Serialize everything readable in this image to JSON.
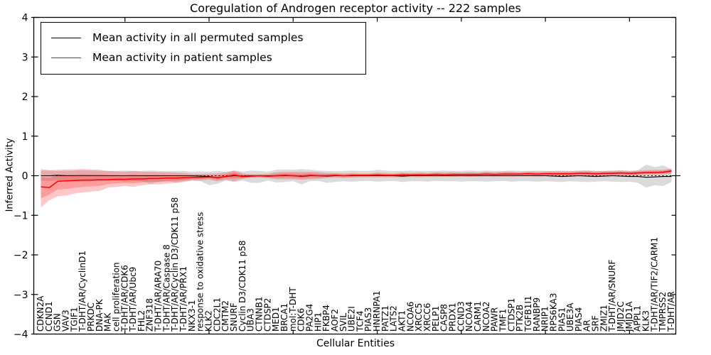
{
  "chart_data": {
    "type": "line",
    "title": "Coregulation of Androgen receptor activity -- 222 samples",
    "xlabel": "Cellular Entities",
    "ylabel": "Inferred Activity",
    "ylim": [
      -4,
      4
    ],
    "yticks": [
      4,
      3,
      2,
      1,
      0,
      -1,
      -2,
      -3,
      -4
    ],
    "xtick_positions": [
      10,
      20,
      30,
      40,
      50,
      60,
      70
    ],
    "grid": false,
    "legend_position": "upper left",
    "zero_line": "dashed",
    "categories": [
      "CDKN2A",
      "CCND1",
      "GSN",
      "VAV3",
      "TGIF1",
      "T-DHT/AR/CyclinD1",
      "PRKDC",
      "DNA-PK",
      "MAK",
      "cell proliferation",
      "T-DHT/AR/CDK6",
      "T-DHT/AR/Ubc9",
      "FHL2",
      "ZNF318",
      "T-DHT/AR/ARA70",
      "T-DHT/AR/Caspase 8",
      "T-DHT/AR/Cyclin D3/CDK11 p58",
      "T-DHT/AR/PRX1",
      "NKX3-1",
      "response to oxidative stress",
      "KLK2",
      "CDC2L1",
      "CMTM2",
      "SNURF",
      "Cyclin D3/CDK11 p58",
      "UBA3",
      "CTNNB1",
      "CTDSP2",
      "MED1",
      "BRCA1",
      "mol:T-DHT",
      "CDK6",
      "PA2G4",
      "HIP1",
      "FKBP4",
      "AOF2",
      "SVIL",
      "UBE2I",
      "TCF4",
      "PIAS3",
      "HNRNPA1",
      "PATZ1",
      "LATS2",
      "AKT1",
      "NCOA6",
      "XRCC5",
      "XRCC6",
      "PELP1",
      "CASP8",
      "PRDX1",
      "CCND3",
      "NCOA4",
      "CARM1",
      "NCOA2",
      "PAWR",
      "TMF1",
      "CTDSP1",
      "PTK2B",
      "TGFB1I1",
      "RANBP9",
      "NRIP1",
      "RPS6KA3",
      "PIAS1",
      "UBE3A",
      "PIAS4",
      "AR",
      "SRF",
      "ZMIZ1",
      "T-DHT/AR/SNURF",
      "JMJD2C",
      "JMJD1A",
      "APPL1",
      "KLK3",
      "T-DHT/AR/TIF2/CARM1",
      "TMPRSS2",
      "T-DHT/AR"
    ],
    "series": [
      {
        "name": "Mean activity in all permuted samples",
        "color": "#000000",
        "band_color": "rgba(0,0,0,0.14)",
        "values": [
          0.0,
          0.0,
          0.01,
          0.0,
          0.0,
          0.0,
          0.0,
          0.0,
          0.0,
          0.0,
          0.0,
          0.0,
          0.0,
          0.0,
          0.0,
          0.0,
          0.0,
          0.0,
          0.0,
          -0.01,
          -0.02,
          -0.05,
          -0.02,
          0.0,
          -0.01,
          0.0,
          0.0,
          0.0,
          0.0,
          0.0,
          0.0,
          -0.02,
          0.0,
          0.0,
          -0.01,
          0.0,
          0.0,
          0.0,
          0.0,
          0.0,
          0.0,
          0.0,
          0.0,
          -0.01,
          0.0,
          0.0,
          0.0,
          0.0,
          0.0,
          0.0,
          0.0,
          0.0,
          0.0,
          0.0,
          0.0,
          0.0,
          0.0,
          0.0,
          0.0,
          0.0,
          0.0,
          -0.01,
          -0.02,
          -0.01,
          0.0,
          -0.01,
          -0.02,
          -0.01,
          0.0,
          -0.01,
          -0.02,
          -0.02,
          -0.04,
          -0.03,
          -0.02,
          -0.02
        ],
        "band_hi": [
          0.13,
          0.13,
          0.12,
          0.12,
          0.13,
          0.14,
          0.13,
          0.12,
          0.12,
          0.12,
          0.13,
          0.12,
          0.12,
          0.13,
          0.12,
          0.11,
          0.12,
          0.12,
          0.1,
          0.11,
          0.1,
          0.12,
          0.1,
          0.12,
          0.1,
          0.13,
          0.12,
          0.1,
          0.15,
          0.16,
          0.15,
          0.17,
          0.15,
          0.13,
          0.12,
          0.11,
          0.12,
          0.13,
          0.12,
          0.12,
          0.15,
          0.13,
          0.12,
          0.12,
          0.13,
          0.12,
          0.12,
          0.12,
          0.13,
          0.12,
          0.12,
          0.13,
          0.12,
          0.13,
          0.12,
          0.12,
          0.13,
          0.12,
          0.12,
          0.13,
          0.12,
          0.12,
          0.13,
          0.12,
          0.13,
          0.14,
          0.12,
          0.12,
          0.13,
          0.14,
          0.12,
          0.14,
          0.28,
          0.22,
          0.26,
          0.16
        ],
        "band_lo": [
          -0.13,
          -0.13,
          -0.12,
          -0.13,
          -0.14,
          -0.15,
          -0.14,
          -0.13,
          -0.14,
          -0.13,
          -0.15,
          -0.14,
          -0.14,
          -0.2,
          -0.16,
          -0.14,
          -0.17,
          -0.14,
          -0.12,
          -0.14,
          -0.24,
          -0.2,
          -0.12,
          -0.16,
          -0.12,
          -0.18,
          -0.18,
          -0.12,
          -0.17,
          -0.16,
          -0.14,
          -0.22,
          -0.14,
          -0.13,
          -0.18,
          -0.16,
          -0.14,
          -0.15,
          -0.14,
          -0.13,
          -0.15,
          -0.14,
          -0.13,
          -0.16,
          -0.14,
          -0.14,
          -0.15,
          -0.13,
          -0.14,
          -0.14,
          -0.15,
          -0.14,
          -0.14,
          -0.15,
          -0.14,
          -0.13,
          -0.15,
          -0.14,
          -0.14,
          -0.15,
          -0.14,
          -0.15,
          -0.16,
          -0.14,
          -0.15,
          -0.16,
          -0.15,
          -0.14,
          -0.15,
          -0.16,
          -0.15,
          -0.18,
          -0.3,
          -0.24,
          -0.26,
          -0.16
        ]
      },
      {
        "name": "Mean activity in patient samples",
        "color": "#ff0000",
        "band_color": "rgba(255,0,0,0.22)",
        "inner_band_scale": 0.55,
        "values": [
          -0.28,
          -0.3,
          -0.14,
          -0.13,
          -0.12,
          -0.11,
          -0.11,
          -0.1,
          -0.1,
          -0.09,
          -0.09,
          -0.08,
          -0.08,
          -0.07,
          -0.07,
          -0.06,
          -0.06,
          -0.05,
          -0.04,
          -0.04,
          -0.03,
          -0.05,
          -0.02,
          0.02,
          -0.02,
          -0.01,
          0.0,
          -0.01,
          0.0,
          0.01,
          0.0,
          -0.01,
          0.01,
          0.0,
          0.0,
          0.01,
          0.0,
          0.01,
          0.01,
          0.01,
          0.02,
          0.01,
          0.01,
          0.02,
          0.02,
          0.02,
          0.02,
          0.03,
          0.02,
          0.03,
          0.03,
          0.03,
          0.03,
          0.04,
          0.03,
          0.04,
          0.04,
          0.04,
          0.05,
          0.04,
          0.05,
          0.05,
          0.05,
          0.05,
          0.06,
          0.06,
          0.05,
          0.06,
          0.06,
          0.07,
          0.06,
          0.07,
          0.08,
          0.08,
          0.09,
          0.12
        ],
        "band_hi": [
          0.17,
          0.14,
          0.15,
          0.16,
          0.16,
          0.17,
          0.16,
          0.15,
          0.12,
          0.11,
          0.1,
          0.12,
          0.1,
          0.1,
          0.09,
          0.09,
          0.08,
          0.07,
          0.05,
          0.05,
          0.05,
          0.06,
          0.08,
          0.14,
          0.06,
          0.04,
          0.04,
          0.05,
          0.09,
          0.1,
          0.1,
          0.1,
          0.1,
          0.09,
          0.07,
          0.07,
          0.06,
          0.07,
          0.06,
          0.06,
          0.08,
          0.07,
          0.06,
          0.08,
          0.07,
          0.08,
          0.07,
          0.09,
          0.08,
          0.09,
          0.08,
          0.09,
          0.08,
          0.1,
          0.09,
          0.1,
          0.1,
          0.09,
          0.11,
          0.1,
          0.11,
          0.11,
          0.11,
          0.11,
          0.12,
          0.12,
          0.11,
          0.12,
          0.12,
          0.13,
          0.12,
          0.13,
          0.14,
          0.15,
          0.15,
          0.18
        ],
        "band_lo": [
          -0.8,
          -0.62,
          -0.52,
          -0.5,
          -0.45,
          -0.42,
          -0.4,
          -0.38,
          -0.3,
          -0.28,
          -0.26,
          -0.28,
          -0.24,
          -0.22,
          -0.22,
          -0.2,
          -0.18,
          -0.16,
          -0.12,
          -0.12,
          -0.1,
          -0.14,
          -0.1,
          -0.14,
          -0.08,
          -0.05,
          -0.05,
          -0.06,
          -0.09,
          -0.09,
          -0.09,
          -0.1,
          -0.09,
          -0.08,
          -0.06,
          -0.05,
          -0.06,
          -0.05,
          -0.04,
          -0.04,
          -0.04,
          -0.04,
          -0.04,
          -0.04,
          -0.03,
          -0.04,
          -0.03,
          -0.03,
          -0.03,
          -0.03,
          -0.02,
          -0.03,
          -0.02,
          -0.02,
          -0.02,
          -0.02,
          -0.02,
          -0.01,
          -0.01,
          -0.02,
          -0.01,
          -0.01,
          -0.01,
          -0.01,
          0.0,
          0.0,
          -0.01,
          0.0,
          0.0,
          0.01,
          0.0,
          0.01,
          0.02,
          0.02,
          0.03,
          0.05
        ]
      }
    ]
  }
}
